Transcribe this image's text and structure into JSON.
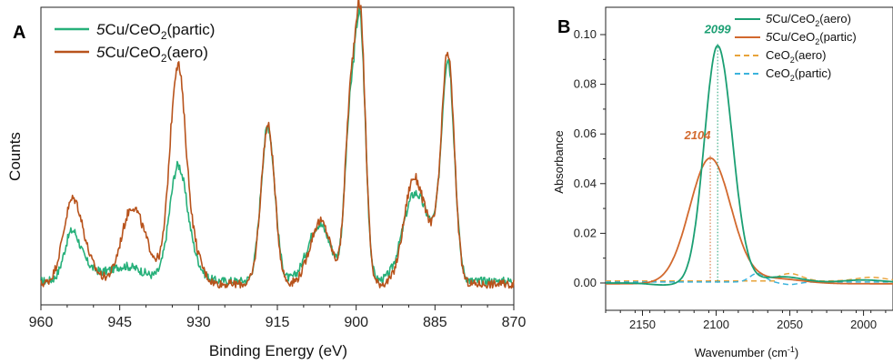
{
  "colors": {
    "green": "#27b07a",
    "rust": "#b8531c",
    "orange_line": "#d2692e",
    "orange_dash": "#e8a33a",
    "cyan_dash": "#3bb3dc",
    "peak_green": "#1b9f73",
    "peak_orange": "#d2692e"
  },
  "chart_data": [
    {
      "panel_label": "A",
      "type": "line",
      "xlabel": "Binding Energy (eV)",
      "ylabel": "Counts",
      "xlim": [
        960,
        870
      ],
      "ylim": [
        0,
        1
      ],
      "x_reversed": true,
      "xticks": [
        960,
        945,
        930,
        915,
        900,
        885,
        870
      ],
      "y_tick_labels_shown": false,
      "legend_position": "top-left",
      "legend": [
        {
          "italic": "5",
          "main": "Cu/CeO",
          "sub": "2",
          "tail": "(partic)"
        },
        {
          "italic": "5",
          "main": "Cu/CeO",
          "sub": "2",
          "tail": "(aero)"
        }
      ],
      "series": [
        {
          "name": "5Cu/CeO2(partic)",
          "color": "#27b07a",
          "baseline": 0.08,
          "peaks": [
            {
              "x": 954.2,
              "height": 0.14,
              "width": 1.4
            },
            {
              "x": 952.0,
              "height": 0.05,
              "width": 2.0
            },
            {
              "x": 944.0,
              "height": 0.05,
              "width": 3.5
            },
            {
              "x": 934.0,
              "height": 0.36,
              "width": 1.6
            },
            {
              "x": 931.5,
              "height": 0.07,
              "width": 1.8
            },
            {
              "x": 916.8,
              "height": 0.52,
              "width": 1.3
            },
            {
              "x": 907.0,
              "height": 0.19,
              "width": 2.2
            },
            {
              "x": 901.2,
              "height": 0.5,
              "width": 1.0
            },
            {
              "x": 899.2,
              "height": 0.82,
              "width": 1.0
            },
            {
              "x": 889.0,
              "height": 0.28,
              "width": 2.2
            },
            {
              "x": 885.0,
              "height": 0.1,
              "width": 2.0
            },
            {
              "x": 882.5,
              "height": 0.7,
              "width": 1.2
            }
          ]
        },
        {
          "name": "5Cu/CeO2(aero)",
          "color": "#b8531c",
          "baseline": 0.07,
          "peaks": [
            {
              "x": 954.0,
              "height": 0.27,
              "width": 1.8
            },
            {
              "x": 951.0,
              "height": 0.05,
              "width": 2.0
            },
            {
              "x": 942.8,
              "height": 0.24,
              "width": 2.0
            },
            {
              "x": 939.5,
              "height": 0.07,
              "width": 2.0
            },
            {
              "x": 934.0,
              "height": 0.72,
              "width": 1.5
            },
            {
              "x": 931.0,
              "height": 0.1,
              "width": 1.6
            },
            {
              "x": 916.8,
              "height": 0.53,
              "width": 1.3
            },
            {
              "x": 906.8,
              "height": 0.21,
              "width": 2.0
            },
            {
              "x": 901.2,
              "height": 0.54,
              "width": 1.0
            },
            {
              "x": 899.2,
              "height": 0.86,
              "width": 1.0
            },
            {
              "x": 889.2,
              "height": 0.33,
              "width": 1.8
            },
            {
              "x": 885.5,
              "height": 0.14,
              "width": 2.0
            },
            {
              "x": 882.5,
              "height": 0.73,
              "width": 1.2
            }
          ]
        }
      ]
    },
    {
      "panel_label": "B",
      "type": "line",
      "xlabel": "Wavenumber (cm",
      "xlabel_sup": "-1",
      "xlabel_tail": ")",
      "ylabel": "Absorbance",
      "xlim": [
        2175,
        1980
      ],
      "ylim": [
        -0.011,
        0.111
      ],
      "x_reversed": true,
      "xticks": [
        2150,
        2100,
        2050,
        2000
      ],
      "yticks": [
        "0.00",
        "0.02",
        "0.04",
        "0.06",
        "0.08",
        "0.10"
      ],
      "legend_position": "top-right",
      "legend": [
        {
          "italic": "5",
          "main": "Cu/CeO",
          "sub": "2",
          "tail": "(aero)"
        },
        {
          "italic": "5",
          "main": "Cu/CeO",
          "sub": "2",
          "tail": "(partic)"
        },
        {
          "italic": "",
          "main": "CeO",
          "sub": "2",
          "tail": "(aero)"
        },
        {
          "italic": "",
          "main": "CeO",
          "sub": "2",
          "tail": "(partic)"
        }
      ],
      "annotations": [
        {
          "text": "2099",
          "x": 2099,
          "y": 0.0955
        },
        {
          "text": "2104",
          "x": 2104,
          "y": 0.0505
        }
      ],
      "series": [
        {
          "name": "5Cu/CeO2(aero)",
          "color": "#1b9f73",
          "dashed": false,
          "peak_x": 2099,
          "peak_y": 0.0955,
          "width_left": 9,
          "width_right": 10
        },
        {
          "name": "5Cu/CeO2(partic)",
          "color": "#d2692e",
          "dashed": false,
          "peak_x": 2104,
          "peak_y": 0.0505,
          "width_left": 14,
          "width_right": 14
        },
        {
          "name": "CeO2(aero)",
          "color": "#e8a33a",
          "dashed": true
        },
        {
          "name": "CeO2(partic)",
          "color": "#3bb3dc",
          "dashed": true
        }
      ]
    }
  ]
}
